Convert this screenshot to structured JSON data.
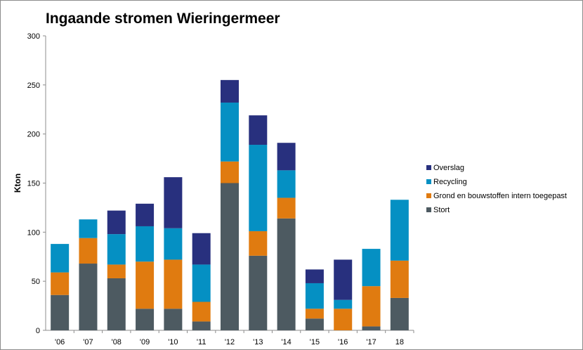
{
  "chart_data": {
    "type": "bar",
    "stacked": true,
    "title": "Ingaande stromen Wieringermeer",
    "xlabel": "",
    "ylabel": "Kton",
    "ylim": [
      0,
      300
    ],
    "yticks": [
      0,
      50,
      100,
      150,
      200,
      250,
      300
    ],
    "grid": false,
    "legend_position": "right",
    "categories": [
      "'06",
      "'07",
      "'08",
      "'09",
      "'10",
      "'11",
      "'12",
      "'13",
      "'14",
      "'15",
      "'16",
      "'17",
      "18"
    ],
    "series": [
      {
        "name": "Stort",
        "color": "#4d5a61",
        "values": [
          36,
          68,
          53,
          22,
          22,
          9,
          150,
          76,
          114,
          12,
          0,
          4,
          33
        ]
      },
      {
        "name": "Grond en bouwstoffen intern toegepast",
        "color": "#e07b10",
        "values": [
          23,
          26,
          14,
          48,
          50,
          20,
          22,
          25,
          21,
          10,
          22,
          41,
          38
        ]
      },
      {
        "name": "Recycling",
        "color": "#0590c3",
        "values": [
          29,
          19,
          31,
          36,
          32,
          38,
          60,
          88,
          28,
          26,
          9,
          38,
          62
        ]
      },
      {
        "name": "Overslag",
        "color": "#28307e",
        "values": [
          0,
          0,
          24,
          23,
          52,
          32,
          23,
          30,
          28,
          14,
          41,
          0,
          0
        ]
      }
    ],
    "legend_order": [
      "Overslag",
      "Recycling",
      "Grond en bouwstoffen intern toegepast",
      "Stort"
    ]
  }
}
